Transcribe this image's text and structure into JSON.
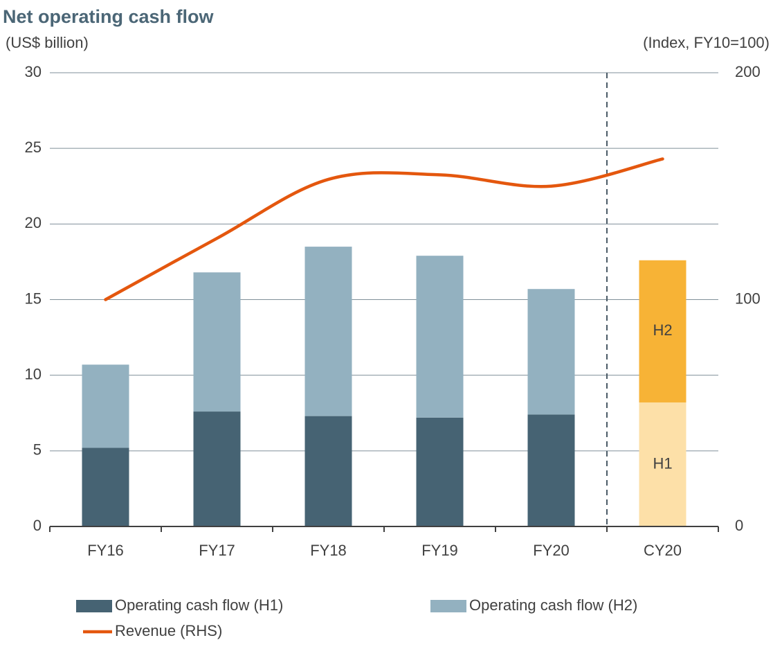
{
  "chart_data": {
    "type": "bar",
    "stacked": true,
    "title": "Net operating cash flow",
    "y_label": "(US$ billion)",
    "y2_label": "(Index, FY10=100)",
    "categories": [
      "FY16",
      "FY17",
      "FY18",
      "FY19",
      "FY20",
      "CY20"
    ],
    "series": [
      {
        "name": "Operating cash flow (H1)",
        "type": "bar",
        "color": "#466373",
        "colors": [
          "#466373",
          "#466373",
          "#466373",
          "#466373",
          "#466373",
          "#fde0a8"
        ],
        "values": [
          5.2,
          7.6,
          7.3,
          7.2,
          7.4,
          8.2
        ]
      },
      {
        "name": "Operating cash flow (H2)",
        "type": "bar",
        "color": "#93b1c0",
        "colors": [
          "#93b1c0",
          "#93b1c0",
          "#93b1c0",
          "#93b1c0",
          "#93b1c0",
          "#f7b336"
        ],
        "values": [
          5.5,
          9.2,
          11.2,
          10.7,
          8.3,
          9.4
        ]
      },
      {
        "name": "Revenue (RHS)",
        "type": "line",
        "axis": "y2",
        "color": "#e4570e",
        "smooth": true,
        "values": [
          100,
          127,
          153,
          155,
          150,
          162
        ]
      }
    ],
    "annotations": [
      {
        "text": "H1",
        "category": "CY20",
        "series": "Operating cash flow (H1)"
      },
      {
        "text": "H2",
        "category": "CY20",
        "series": "Operating cash flow (H2)"
      }
    ],
    "ylim": [
      0,
      30
    ],
    "yticks": [
      0,
      5,
      10,
      15,
      20,
      25,
      30
    ],
    "y2lim": [
      0,
      200
    ],
    "y2ticks": [
      0,
      100,
      200
    ],
    "grid": true,
    "legend": "bottom"
  }
}
